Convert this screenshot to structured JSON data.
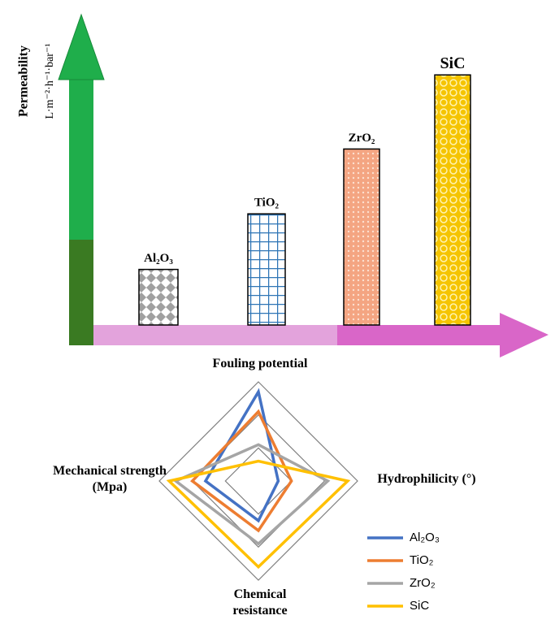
{
  "chart_data": [
    {
      "type": "bar",
      "ylabel": "Permeability",
      "yunit": "L·m⁻²·h⁻¹·bar⁻¹",
      "categories": [
        "Al₂O₃",
        "TiO₂",
        "ZrO₂",
        "SiC"
      ],
      "values": [
        18,
        36,
        57,
        81
      ],
      "colors": [
        "#9e9e9e",
        "#2e75b6",
        "#f4a582",
        "#f5c400"
      ],
      "ylim": [
        0,
        100
      ]
    },
    {
      "type": "radar",
      "axes": [
        "Fouling potential",
        "Hydrophilicity (°)",
        "Chemical resistance",
        "Mechanical strength (Mpa)"
      ],
      "rlim": [
        0,
        3
      ],
      "series": [
        {
          "name": "Al₂O₃",
          "color": "#4472c4",
          "values": [
            2.7,
            0.6,
            1.2,
            1.6
          ]
        },
        {
          "name": "TiO₂",
          "color": "#ed7d31",
          "values": [
            2.1,
            1.0,
            1.5,
            2.0
          ]
        },
        {
          "name": "ZrO₂",
          "color": "#a5a5a5",
          "values": [
            1.1,
            2.1,
            1.9,
            2.5
          ]
        },
        {
          "name": "SiC",
          "color": "#ffc000",
          "values": [
            0.6,
            2.7,
            2.6,
            2.7
          ]
        }
      ]
    }
  ]
}
